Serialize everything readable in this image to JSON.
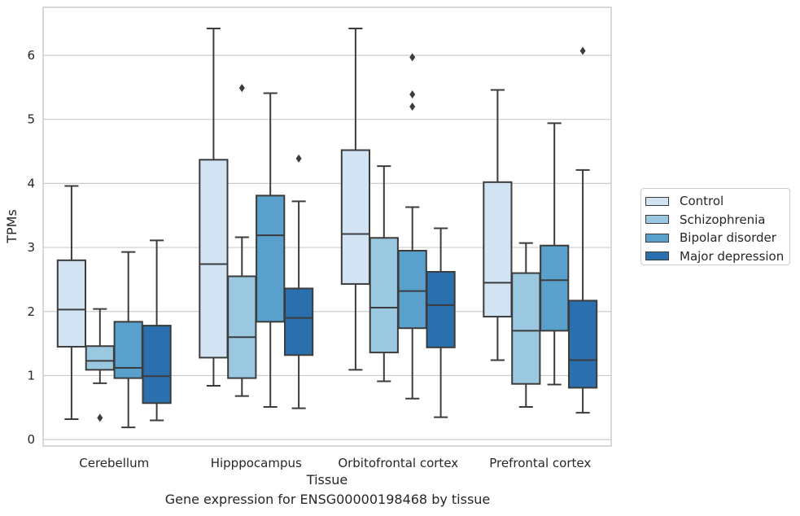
{
  "caption": "Gene expression for ENSG00000198468 by tissue",
  "chart_data": {
    "type": "box",
    "title": "",
    "xlabel": "Tissue",
    "ylabel": "TPMs",
    "ylim": [
      -0.1,
      6.75
    ],
    "yticks": [
      0,
      1,
      2,
      3,
      4,
      5,
      6
    ],
    "grid": "horizontal",
    "legend_position": "right",
    "categories": [
      "Cerebellum",
      "Hipppocampus",
      "Orbitofrontal cortex",
      "Prefrontal cortex"
    ],
    "series": [
      {
        "name": "Control",
        "color": "#d2e3f3",
        "boxes": [
          {
            "whisker_low": 0.32,
            "q1": 1.45,
            "median": 2.03,
            "q3": 2.8,
            "whisker_high": 3.96,
            "outliers": []
          },
          {
            "whisker_low": 0.84,
            "q1": 1.28,
            "median": 2.74,
            "q3": 4.37,
            "whisker_high": 6.42,
            "outliers": []
          },
          {
            "whisker_low": 1.09,
            "q1": 2.43,
            "median": 3.21,
            "q3": 4.52,
            "whisker_high": 6.42,
            "outliers": []
          },
          {
            "whisker_low": 1.24,
            "q1": 1.92,
            "median": 2.45,
            "q3": 4.02,
            "whisker_high": 5.46,
            "outliers": []
          }
        ]
      },
      {
        "name": "Schizophrenia",
        "color": "#9ac8e0",
        "boxes": [
          {
            "whisker_low": 0.88,
            "q1": 1.09,
            "median": 1.23,
            "q3": 1.46,
            "whisker_high": 2.04,
            "outliers": [
              0.34
            ]
          },
          {
            "whisker_low": 0.68,
            "q1": 0.96,
            "median": 1.6,
            "q3": 2.55,
            "whisker_high": 3.16,
            "outliers": [
              5.49
            ]
          },
          {
            "whisker_low": 0.91,
            "q1": 1.36,
            "median": 2.06,
            "q3": 3.15,
            "whisker_high": 4.27,
            "outliers": []
          },
          {
            "whisker_low": 0.51,
            "q1": 0.87,
            "median": 1.7,
            "q3": 2.6,
            "whisker_high": 3.07,
            "outliers": []
          }
        ]
      },
      {
        "name": "Bipolar disorder",
        "color": "#5aa0cd",
        "boxes": [
          {
            "whisker_low": 0.19,
            "q1": 0.96,
            "median": 1.12,
            "q3": 1.84,
            "whisker_high": 2.93,
            "outliers": []
          },
          {
            "whisker_low": 0.51,
            "q1": 1.84,
            "median": 3.19,
            "q3": 3.81,
            "whisker_high": 5.41,
            "outliers": []
          },
          {
            "whisker_low": 0.64,
            "q1": 1.74,
            "median": 2.32,
            "q3": 2.95,
            "whisker_high": 3.63,
            "outliers": [
              5.97,
              5.39,
              5.2
            ]
          },
          {
            "whisker_low": 0.86,
            "q1": 1.7,
            "median": 2.49,
            "q3": 3.03,
            "whisker_high": 4.94,
            "outliers": []
          }
        ]
      },
      {
        "name": "Major depression",
        "color": "#2a6fae",
        "boxes": [
          {
            "whisker_low": 0.3,
            "q1": 0.57,
            "median": 0.99,
            "q3": 1.78,
            "whisker_high": 3.11,
            "outliers": []
          },
          {
            "whisker_low": 0.49,
            "q1": 1.32,
            "median": 1.9,
            "q3": 2.36,
            "whisker_high": 3.72,
            "outliers": [
              4.39
            ]
          },
          {
            "whisker_low": 0.35,
            "q1": 1.44,
            "median": 2.1,
            "q3": 2.62,
            "whisker_high": 3.3,
            "outliers": []
          },
          {
            "whisker_low": 0.42,
            "q1": 0.81,
            "median": 1.24,
            "q3": 2.17,
            "whisker_high": 4.21,
            "outliers": [
              6.07
            ]
          }
        ]
      }
    ]
  },
  "colors": {
    "grid": "#cccccc",
    "frame": "#cccccc",
    "box_edge": "#3c3c3c",
    "text": "#262626"
  }
}
